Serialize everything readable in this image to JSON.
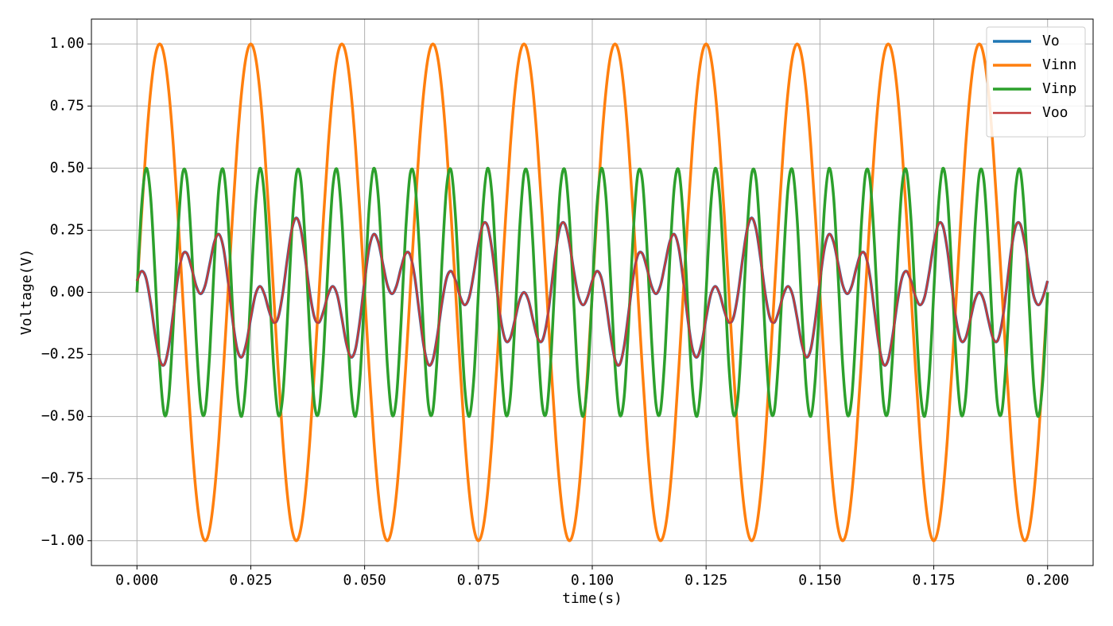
{
  "chart_data": {
    "type": "line",
    "xlabel": "time(s)",
    "ylabel": "Voltage(V)",
    "xlim": [
      -0.01,
      0.21
    ],
    "ylim": [
      -1.1,
      1.1
    ],
    "xticks": [
      {
        "value": 0,
        "label": "0.000"
      },
      {
        "value": 0.025,
        "label": "0.025"
      },
      {
        "value": 0.05,
        "label": "0.050"
      },
      {
        "value": 0.075,
        "label": "0.075"
      },
      {
        "value": 0.1,
        "label": "0.100"
      },
      {
        "value": 0.125,
        "label": "0.125"
      },
      {
        "value": 0.15,
        "label": "0.150"
      },
      {
        "value": 0.175,
        "label": "0.175"
      },
      {
        "value": 0.2,
        "label": "0.200"
      }
    ],
    "yticks": [
      {
        "value": -1,
        "label": "−1.00"
      },
      {
        "value": -0.75,
        "label": "−0.75"
      },
      {
        "value": -0.5,
        "label": "−0.50"
      },
      {
        "value": -0.25,
        "label": "−0.25"
      },
      {
        "value": 0,
        "label": "0.00"
      },
      {
        "value": 0.25,
        "label": "0.25"
      },
      {
        "value": 0.5,
        "label": "0.50"
      },
      {
        "value": 0.75,
        "label": "0.75"
      },
      {
        "value": 1,
        "label": "1.00"
      }
    ],
    "grid": true,
    "legend": "upper right",
    "x": [
      0,
      0.001,
      0.002,
      0.003,
      0.004,
      0.005,
      0.006,
      0.007,
      0.008,
      0.009,
      0.01,
      0.011,
      0.012,
      0.013,
      0.014,
      0.015,
      0.016,
      0.017,
      0.018,
      0.019,
      0.02,
      0.021,
      0.022,
      0.023,
      0.024,
      0.025,
      0.026,
      0.027,
      0.028,
      0.029,
      0.03,
      0.031,
      0.032,
      0.033,
      0.034,
      0.035,
      0.036,
      0.037,
      0.038,
      0.039,
      0.04,
      0.041,
      0.042,
      0.043,
      0.044,
      0.045,
      0.046,
      0.047,
      0.048,
      0.049,
      0.05,
      0.051,
      0.052,
      0.053,
      0.054,
      0.055,
      0.056,
      0.057,
      0.058,
      0.059,
      0.06,
      0.061,
      0.062,
      0.063,
      0.064,
      0.065,
      0.066,
      0.067,
      0.068,
      0.069,
      0.07,
      0.071,
      0.072,
      0.073,
      0.074,
      0.075,
      0.076,
      0.077,
      0.078,
      0.079,
      0.08,
      0.081,
      0.082,
      0.083,
      0.084,
      0.085,
      0.086,
      0.087,
      0.088,
      0.089,
      0.09,
      0.091,
      0.092,
      0.093,
      0.094,
      0.095,
      0.096,
      0.097,
      0.098,
      0.099,
      0.1,
      0.101,
      0.102,
      0.103,
      0.104,
      0.105,
      0.106,
      0.107,
      0.108,
      0.109,
      0.11,
      0.111,
      0.112,
      0.113,
      0.114,
      0.115,
      0.116,
      0.117,
      0.118,
      0.119,
      0.12,
      0.121,
      0.122,
      0.123,
      0.124,
      0.125,
      0.126,
      0.127,
      0.128,
      0.129,
      0.13,
      0.131,
      0.132,
      0.133,
      0.134,
      0.135,
      0.136,
      0.137,
      0.138,
      0.139,
      0.14,
      0.141,
      0.142,
      0.143,
      0.144,
      0.145,
      0.146,
      0.147,
      0.148,
      0.149,
      0.15,
      0.151,
      0.152,
      0.153,
      0.154,
      0.155,
      0.156,
      0.157,
      0.158,
      0.159,
      0.16,
      0.161,
      0.162,
      0.163,
      0.164,
      0.165,
      0.166,
      0.167,
      0.168,
      0.169,
      0.17,
      0.171,
      0.172,
      0.173,
      0.174,
      0.175,
      0.176,
      0.177,
      0.178,
      0.179,
      0.18,
      0.181,
      0.182,
      0.183,
      0.184,
      0.185,
      0.186,
      0.187,
      0.188,
      0.189,
      0.19,
      0.191,
      0.192,
      0.193,
      0.194,
      0.195,
      0.196,
      0.197,
      0.198,
      0.199,
      0.2
    ],
    "series": [
      {
        "name": "Vo",
        "color": "#1f77b4",
        "values": [
          0.046,
          0.085,
          0.057,
          -0.041,
          -0.171,
          -0.271,
          -0.291,
          -0.217,
          -0.079,
          0.063,
          0.15,
          0.156,
          0.098,
          0.026,
          -0.006,
          0.029,
          0.115,
          0.202,
          0.234,
          0.178,
          0.046,
          -0.11,
          -0.228,
          -0.261,
          -0.207,
          -0.104,
          -0.011,
          0.024,
          -0.008,
          -0.074,
          -0.121,
          -0.102,
          -0.007,
          0.131,
          0.252,
          0.3,
          0.252,
          0.131,
          -0.007,
          -0.102,
          -0.121,
          -0.074,
          -0.008,
          0.024,
          -0.011,
          -0.104,
          -0.207,
          -0.261,
          -0.228,
          -0.11,
          0.046,
          0.178,
          0.234,
          0.202,
          0.115,
          0.029,
          -0.006,
          0.026,
          0.098,
          0.156,
          0.15,
          0.063,
          -0.079,
          -0.217,
          -0.291,
          -0.271,
          -0.171,
          -0.041,
          0.057,
          0.085,
          0.046,
          -0.018,
          -0.051,
          -0.018,
          0.079,
          0.196,
          0.274,
          0.267,
          0.169,
          0.018,
          -0.121,
          -0.195,
          -0.184,
          -0.112,
          -0.033,
          0,
          -0.033,
          -0.112,
          -0.184,
          -0.195,
          -0.121,
          0.018,
          0.169,
          0.267,
          0.274,
          0.196,
          0.079,
          -0.018,
          -0.051,
          -0.018,
          0.046,
          0.085,
          0.057,
          -0.041,
          -0.171,
          -0.271,
          -0.291,
          -0.217,
          -0.079,
          0.063,
          0.15,
          0.156,
          0.098,
          0.026,
          -0.006,
          0.029,
          0.115,
          0.202,
          0.234,
          0.178,
          0.046,
          -0.11,
          -0.228,
          -0.261,
          -0.207,
          -0.104,
          -0.011,
          0.024,
          -0.008,
          -0.074,
          -0.121,
          -0.102,
          -0.007,
          0.131,
          0.252,
          0.3,
          0.252,
          0.131,
          -0.007,
          -0.102,
          -0.121,
          -0.074,
          -0.008,
          0.024,
          -0.011,
          -0.104,
          -0.207,
          -0.261,
          -0.228,
          -0.11,
          0.046,
          0.178,
          0.234,
          0.202,
          0.115,
          0.029,
          -0.006,
          0.026,
          0.098,
          0.156,
          0.15,
          0.063,
          -0.079,
          -0.217,
          -0.291,
          -0.271,
          -0.171,
          -0.041,
          0.057,
          0.085,
          0.046,
          -0.018,
          -0.051,
          -0.018,
          0.079,
          0.196,
          0.274,
          0.267,
          0.169,
          0.018,
          -0.121,
          -0.195,
          -0.184,
          -0.112,
          -0.033,
          0,
          -0.033,
          -0.112,
          -0.184,
          -0.195,
          -0.121,
          0.018,
          0.169,
          0.267,
          0.274,
          0.196,
          0.079,
          -0.018,
          -0.051,
          -0.018,
          0.046
        ]
      },
      {
        "name": "Vinn",
        "color": "#ff7f0e",
        "values": [
          0,
          0.309,
          0.588,
          0.809,
          0.951,
          1,
          0.951,
          0.809,
          0.588,
          0.309,
          0,
          -0.309,
          -0.588,
          -0.809,
          -0.951,
          -1,
          -0.951,
          -0.809,
          -0.588,
          -0.309,
          0,
          0.309,
          0.588,
          0.809,
          0.951,
          1,
          0.951,
          0.809,
          0.588,
          0.309,
          0,
          -0.309,
          -0.588,
          -0.809,
          -0.951,
          -1,
          -0.951,
          -0.809,
          -0.588,
          -0.309,
          0,
          0.309,
          0.588,
          0.809,
          0.951,
          1,
          0.951,
          0.809,
          0.588,
          0.309,
          0,
          -0.309,
          -0.588,
          -0.809,
          -0.951,
          -1,
          -0.951,
          -0.809,
          -0.588,
          -0.309,
          0,
          0.309,
          0.588,
          0.809,
          0.951,
          1,
          0.951,
          0.809,
          0.588,
          0.309,
          0,
          -0.309,
          -0.588,
          -0.809,
          -0.951,
          -1,
          -0.951,
          -0.809,
          -0.588,
          -0.309,
          0,
          0.309,
          0.588,
          0.809,
          0.951,
          1,
          0.951,
          0.809,
          0.588,
          0.309,
          0,
          -0.309,
          -0.588,
          -0.809,
          -0.951,
          -1,
          -0.951,
          -0.809,
          -0.588,
          -0.309,
          0,
          0.309,
          0.588,
          0.809,
          0.951,
          1,
          0.951,
          0.809,
          0.588,
          0.309,
          0,
          -0.309,
          -0.588,
          -0.809,
          -0.951,
          -1,
          -0.951,
          -0.809,
          -0.588,
          -0.309,
          0,
          0.309,
          0.588,
          0.809,
          0.951,
          1,
          0.951,
          0.809,
          0.588,
          0.309,
          0,
          -0.309,
          -0.588,
          -0.809,
          -0.951,
          -1,
          -0.951,
          -0.809,
          -0.588,
          -0.309,
          0,
          0.309,
          0.588,
          0.809,
          0.951,
          1,
          0.951,
          0.809,
          0.588,
          0.309,
          0,
          -0.309,
          -0.588,
          -0.809,
          -0.951,
          -1,
          -0.951,
          -0.809,
          -0.588,
          -0.309,
          0,
          0.309,
          0.588,
          0.809,
          0.951,
          1,
          0.951,
          0.809,
          0.588,
          0.309,
          0,
          -0.309,
          -0.588,
          -0.809,
          -0.951,
          -1,
          -0.951,
          -0.809,
          -0.588,
          -0.309,
          0,
          0.309,
          0.588,
          0.809,
          0.951,
          1,
          0.951,
          0.809,
          0.588,
          0.309,
          0,
          -0.309,
          -0.588,
          -0.809,
          -0.951,
          -1,
          -0.951,
          -0.809,
          -0.588,
          -0.309,
          0
        ]
      },
      {
        "name": "Vinp",
        "color": "#2ca02c",
        "values": [
          0,
          0.342,
          0.499,
          0.385,
          0.063,
          -0.294,
          -0.491,
          -0.422,
          -0.124,
          0.241,
          0.476,
          0.452,
          0.184,
          -0.184,
          -0.452,
          -0.476,
          -0.241,
          0.124,
          0.422,
          0.491,
          0.294,
          -0.063,
          -0.385,
          -0.499,
          -0.342,
          0,
          0.342,
          0.499,
          0.385,
          0.063,
          -0.294,
          -0.491,
          -0.422,
          -0.124,
          0.241,
          0.476,
          0.452,
          0.184,
          -0.184,
          -0.452,
          -0.476,
          -0.241,
          0.124,
          0.422,
          0.491,
          0.294,
          -0.063,
          -0.385,
          -0.499,
          -0.342,
          0,
          0.342,
          0.499,
          0.385,
          0.063,
          -0.294,
          -0.491,
          -0.422,
          -0.124,
          0.241,
          0.476,
          0.452,
          0.184,
          -0.184,
          -0.452,
          -0.476,
          -0.241,
          0.124,
          0.422,
          0.491,
          0.294,
          -0.063,
          -0.385,
          -0.499,
          -0.342,
          0,
          0.342,
          0.499,
          0.385,
          0.063,
          -0.294,
          -0.491,
          -0.422,
          -0.124,
          0.241,
          0.476,
          0.452,
          0.184,
          -0.184,
          -0.452,
          -0.476,
          -0.241,
          0.124,
          0.422,
          0.491,
          0.294,
          -0.063,
          -0.385,
          -0.499,
          -0.342,
          0,
          0.342,
          0.499,
          0.385,
          0.063,
          -0.294,
          -0.491,
          -0.422,
          -0.124,
          0.241,
          0.476,
          0.452,
          0.184,
          -0.184,
          -0.452,
          -0.476,
          -0.241,
          0.124,
          0.422,
          0.491,
          0.294,
          -0.063,
          -0.385,
          -0.499,
          -0.342,
          0,
          0.342,
          0.499,
          0.385,
          0.063,
          -0.294,
          -0.491,
          -0.422,
          -0.124,
          0.241,
          0.476,
          0.452,
          0.184,
          -0.184,
          -0.452,
          -0.476,
          -0.241,
          0.124,
          0.422,
          0.491,
          0.294,
          -0.063,
          -0.385,
          -0.499,
          -0.342,
          0,
          0.342,
          0.499,
          0.385,
          0.063,
          -0.294,
          -0.491,
          -0.422,
          -0.124,
          0.241,
          0.476,
          0.452,
          0.184,
          -0.184,
          -0.452,
          -0.476,
          -0.241,
          0.124,
          0.422,
          0.491,
          0.294,
          -0.063,
          -0.385,
          -0.499,
          -0.342,
          0,
          0.342,
          0.499,
          0.385,
          0.063,
          -0.294,
          -0.491,
          -0.422,
          -0.124,
          0.241,
          0.476,
          0.452,
          0.184,
          -0.184,
          -0.452,
          -0.476,
          -0.241,
          0.124,
          0.422,
          0.491,
          0.294,
          -0.063,
          -0.385,
          -0.499,
          -0.342,
          0
        ]
      },
      {
        "name": "Voo",
        "color": "#c23b3b",
        "values": [
          0.046,
          0.085,
          0.057,
          -0.041,
          -0.171,
          -0.271,
          -0.291,
          -0.217,
          -0.079,
          0.063,
          0.15,
          0.156,
          0.098,
          0.026,
          -0.006,
          0.029,
          0.115,
          0.202,
          0.234,
          0.178,
          0.046,
          -0.11,
          -0.228,
          -0.261,
          -0.207,
          -0.104,
          -0.011,
          0.024,
          -0.008,
          -0.074,
          -0.121,
          -0.102,
          -0.007,
          0.131,
          0.252,
          0.3,
          0.252,
          0.131,
          -0.007,
          -0.102,
          -0.121,
          -0.074,
          -0.008,
          0.024,
          -0.011,
          -0.104,
          -0.207,
          -0.261,
          -0.228,
          -0.11,
          0.046,
          0.178,
          0.234,
          0.202,
          0.115,
          0.029,
          -0.006,
          0.026,
          0.098,
          0.156,
          0.15,
          0.063,
          -0.079,
          -0.217,
          -0.291,
          -0.271,
          -0.171,
          -0.041,
          0.057,
          0.085,
          0.046,
          -0.018,
          -0.051,
          -0.018,
          0.079,
          0.196,
          0.274,
          0.267,
          0.169,
          0.018,
          -0.121,
          -0.195,
          -0.184,
          -0.112,
          -0.033,
          0,
          -0.033,
          -0.112,
          -0.184,
          -0.195,
          -0.121,
          0.018,
          0.169,
          0.267,
          0.274,
          0.196,
          0.079,
          -0.018,
          -0.051,
          -0.018,
          0.046,
          0.085,
          0.057,
          -0.041,
          -0.171,
          -0.271,
          -0.291,
          -0.217,
          -0.079,
          0.063,
          0.15,
          0.156,
          0.098,
          0.026,
          -0.006,
          0.029,
          0.115,
          0.202,
          0.234,
          0.178,
          0.046,
          -0.11,
          -0.228,
          -0.261,
          -0.207,
          -0.104,
          -0.011,
          0.024,
          -0.008,
          -0.074,
          -0.121,
          -0.102,
          -0.007,
          0.131,
          0.252,
          0.3,
          0.252,
          0.131,
          -0.007,
          -0.102,
          -0.121,
          -0.074,
          -0.008,
          0.024,
          -0.011,
          -0.104,
          -0.207,
          -0.261,
          -0.228,
          -0.11,
          0.046,
          0.178,
          0.234,
          0.202,
          0.115,
          0.029,
          -0.006,
          0.026,
          0.098,
          0.156,
          0.15,
          0.063,
          -0.079,
          -0.217,
          -0.291,
          -0.271,
          -0.171,
          -0.041,
          0.057,
          0.085,
          0.046,
          -0.018,
          -0.051,
          -0.018,
          0.079,
          0.196,
          0.274,
          0.267,
          0.169,
          0.018,
          -0.121,
          -0.195,
          -0.184,
          -0.112,
          -0.033,
          0,
          -0.033,
          -0.112,
          -0.184,
          -0.195,
          -0.121,
          0.018,
          0.169,
          0.267,
          0.274,
          0.196,
          0.079,
          -0.018,
          -0.051,
          -0.018,
          0.046
        ]
      }
    ]
  }
}
